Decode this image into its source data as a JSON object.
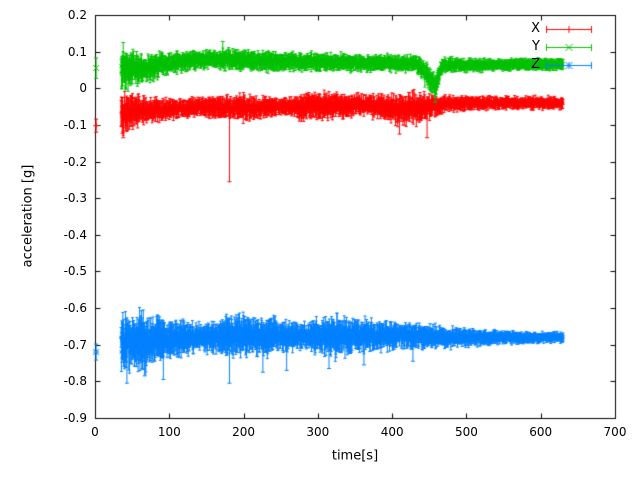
{
  "chart_data": {
    "type": "scatter",
    "style": "errorbars",
    "title": "",
    "xlabel": "time[s]",
    "ylabel": "acceleration [g]",
    "xlim": [
      0,
      700
    ],
    "ylim": [
      -0.9,
      0.2
    ],
    "grid": false,
    "legend_position": "top-right-inside",
    "xticks": {
      "values": [
        0,
        100,
        200,
        300,
        400,
        500,
        600,
        700
      ],
      "labels": [
        "0",
        "100",
        "200",
        "300",
        "400",
        "500",
        "600",
        "700"
      ]
    },
    "yticks": {
      "values": [
        0.2,
        0.1,
        0,
        -0.1,
        -0.2,
        -0.3,
        -0.4,
        -0.5,
        -0.6,
        -0.7,
        -0.8,
        -0.9
      ],
      "labels": [
        "0.2",
        "0.1",
        "0",
        "-0.1",
        "-0.2",
        "-0.3",
        "-0.4",
        "-0.5",
        "-0.6",
        "-0.7",
        "-0.8",
        "-0.9"
      ]
    },
    "series": [
      {
        "name": "X",
        "color": "#ff0000",
        "marker": "plus",
        "approx_mean": -0.05,
        "initial_point": {
          "x": 1.5,
          "y": -0.102,
          "err": 0.018
        },
        "band_segments": [
          [
            35,
            45,
            -0.065,
            0.05
          ],
          [
            45,
            95,
            -0.06,
            0.03
          ],
          [
            95,
            180,
            -0.05,
            0.022
          ],
          [
            180,
            235,
            -0.055,
            0.032
          ],
          [
            235,
            255,
            -0.05,
            0.02
          ],
          [
            255,
            335,
            -0.05,
            0.034
          ],
          [
            335,
            395,
            -0.045,
            0.025
          ],
          [
            395,
            420,
            -0.06,
            0.034
          ],
          [
            420,
            465,
            -0.05,
            0.036
          ],
          [
            465,
            480,
            -0.042,
            0.018
          ],
          [
            480,
            630,
            -0.04,
            0.015
          ]
        ],
        "spikes": [
          [
            38,
            -0.135
          ],
          [
            181,
            -0.255
          ],
          [
            410,
            -0.125
          ],
          [
            447,
            -0.135
          ]
        ]
      },
      {
        "name": "Y",
        "color": "#00c000",
        "marker": "cross",
        "approx_mean": 0.07,
        "initial_point": {
          "x": 1.5,
          "y": 0.055,
          "err": 0.028
        },
        "band_segments": [
          [
            35,
            48,
            0.05,
            0.048
          ],
          [
            48,
            80,
            0.052,
            0.036
          ],
          [
            80,
            130,
            0.07,
            0.024
          ],
          [
            130,
            165,
            0.08,
            0.022
          ],
          [
            165,
            250,
            0.075,
            0.024
          ],
          [
            250,
            425,
            0.07,
            0.02
          ],
          [
            425,
            440,
            0.068,
            0.02
          ],
          [
            440,
            452,
            0.038,
            0.03
          ],
          [
            452,
            464,
            0.005,
            0.026
          ],
          [
            464,
            472,
            0.062,
            0.018
          ],
          [
            472,
            630,
            0.065,
            0.014
          ]
        ],
        "spikes": [
          [
            38,
            0.125
          ],
          [
            172,
            0.128
          ],
          [
            458,
            -0.038
          ]
        ]
      },
      {
        "name": "Z",
        "color": "#0080ff",
        "marker": "star",
        "approx_mean": -0.68,
        "initial_point": {
          "x": 1.5,
          "y": -0.72,
          "err": 0.022
        },
        "band_segments": [
          [
            35,
            90,
            -0.69,
            0.068
          ],
          [
            90,
            115,
            -0.685,
            0.045
          ],
          [
            115,
            175,
            -0.68,
            0.032
          ],
          [
            175,
            195,
            -0.675,
            0.05
          ],
          [
            195,
            260,
            -0.675,
            0.045
          ],
          [
            260,
            310,
            -0.675,
            0.03
          ],
          [
            310,
            325,
            -0.675,
            0.05
          ],
          [
            325,
            430,
            -0.675,
            0.035
          ],
          [
            430,
            500,
            -0.68,
            0.026
          ],
          [
            500,
            560,
            -0.68,
            0.018
          ],
          [
            560,
            630,
            -0.68,
            0.012
          ]
        ],
        "spikes": [
          [
            43,
            -0.805
          ],
          [
            67,
            -0.785
          ],
          [
            92,
            -0.795
          ],
          [
            181,
            -0.805
          ],
          [
            226,
            -0.775
          ],
          [
            258,
            -0.77
          ],
          [
            315,
            -0.765
          ],
          [
            362,
            -0.755
          ],
          [
            428,
            -0.745
          ]
        ]
      }
    ]
  }
}
